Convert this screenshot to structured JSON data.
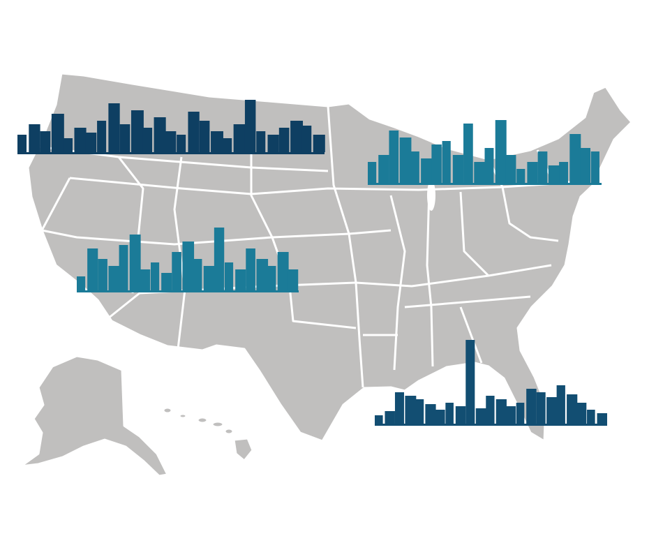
{
  "colors": {
    "background": "#ffffff",
    "land": "#c0bfbe",
    "borders": "#ffffff",
    "skyline_navy": "#0e3f62",
    "skyline_teal": "#1b7b98",
    "skyline_dark_blue": "#124e72"
  },
  "skylines": [
    {
      "id": "northwest",
      "color_key": "skyline_navy"
    },
    {
      "id": "northeast",
      "color_key": "skyline_teal"
    },
    {
      "id": "southwest",
      "color_key": "skyline_teal"
    },
    {
      "id": "southeast",
      "color_key": "skyline_dark_blue"
    }
  ]
}
